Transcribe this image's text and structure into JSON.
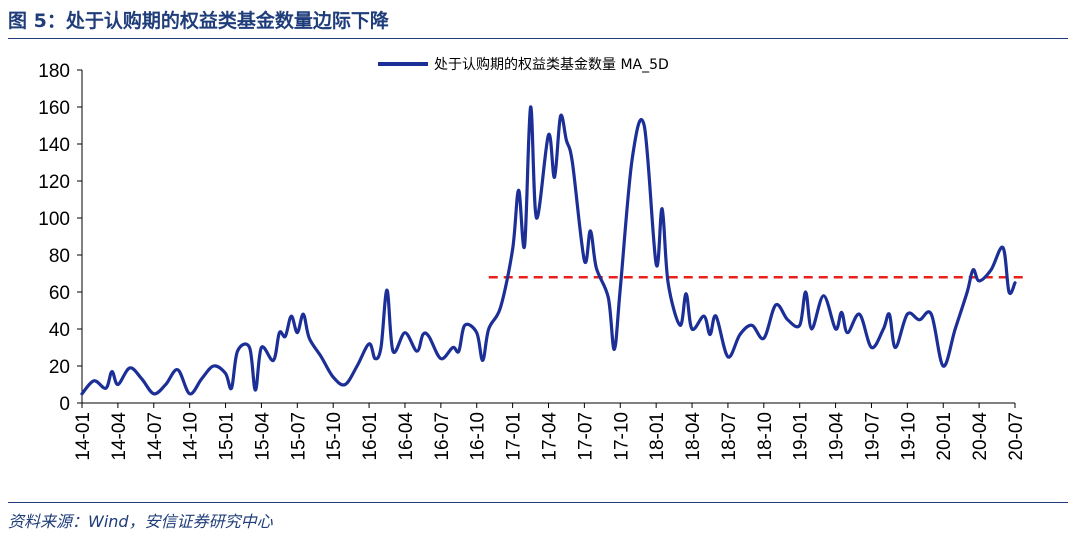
{
  "figure": {
    "title": "图 5：处于认购期的权益类基金数量边际下降",
    "source": "资料来源：Wind，安信证券研究中心"
  },
  "colors": {
    "series_line": "#1c2f96",
    "reference_line": "#e8221b",
    "title_text": "#1f3d7a"
  },
  "chart_data": {
    "type": "line",
    "title": "",
    "xlabel": "",
    "ylabel": "",
    "ylim": [
      0,
      180
    ],
    "yticks": [
      0,
      20,
      40,
      60,
      80,
      100,
      120,
      140,
      160,
      180
    ],
    "x_ticks": [
      "14-01",
      "14-04",
      "14-07",
      "14-10",
      "15-01",
      "15-04",
      "15-07",
      "15-10",
      "16-01",
      "16-04",
      "16-07",
      "16-10",
      "17-01",
      "17-04",
      "17-07",
      "17-10",
      "18-01",
      "18-04",
      "18-07",
      "18-10",
      "19-01",
      "19-04",
      "19-07",
      "19-10",
      "20-01",
      "20-04",
      "20-07"
    ],
    "grid": false,
    "legend_position": "top-center",
    "series": [
      {
        "name": "处于认购期的权益类基金数量 MA_5D",
        "points": [
          [
            "14-01",
            5
          ],
          [
            "14-02",
            12
          ],
          [
            "14-03",
            8
          ],
          [
            "14-03",
            17
          ],
          [
            "14-04",
            10
          ],
          [
            "14-05",
            19
          ],
          [
            "14-06",
            13
          ],
          [
            "14-07",
            5
          ],
          [
            "14-08",
            10
          ],
          [
            "14-09",
            18
          ],
          [
            "14-10",
            5
          ],
          [
            "14-11",
            13
          ],
          [
            "14-12",
            20
          ],
          [
            "15-01",
            16
          ],
          [
            "15-01",
            8
          ],
          [
            "15-02",
            28
          ],
          [
            "15-03",
            30
          ],
          [
            "15-03",
            7
          ],
          [
            "15-04",
            30
          ],
          [
            "15-05",
            23
          ],
          [
            "15-05",
            38
          ],
          [
            "15-06",
            36
          ],
          [
            "15-06",
            47
          ],
          [
            "15-07",
            38
          ],
          [
            "15-07",
            48
          ],
          [
            "15-08",
            35
          ],
          [
            "15-09",
            25
          ],
          [
            "15-10",
            14
          ],
          [
            "15-11",
            10
          ],
          [
            "15-12",
            20
          ],
          [
            "16-01",
            32
          ],
          [
            "16-01",
            24
          ],
          [
            "16-02",
            30
          ],
          [
            "16-02",
            61
          ],
          [
            "16-03",
            28
          ],
          [
            "16-04",
            38
          ],
          [
            "16-05",
            28
          ],
          [
            "16-05",
            37
          ],
          [
            "16-06",
            36
          ],
          [
            "16-07",
            24
          ],
          [
            "16-08",
            30
          ],
          [
            "16-08",
            28
          ],
          [
            "16-09",
            42
          ],
          [
            "16-10",
            38
          ],
          [
            "16-10",
            23
          ],
          [
            "16-11",
            40
          ],
          [
            "16-12",
            52
          ],
          [
            "17-01",
            83
          ],
          [
            "17-01",
            115
          ],
          [
            "17-02",
            85
          ],
          [
            "17-02",
            160
          ],
          [
            "17-03",
            100
          ],
          [
            "17-04",
            145
          ],
          [
            "17-04",
            122
          ],
          [
            "17-05",
            155
          ],
          [
            "17-05",
            142
          ],
          [
            "17-06",
            130
          ],
          [
            "17-07",
            77
          ],
          [
            "17-07",
            93
          ],
          [
            "17-08",
            73
          ],
          [
            "17-09",
            57
          ],
          [
            "17-09",
            29
          ],
          [
            "17-10",
            62
          ],
          [
            "17-11",
            132
          ],
          [
            "17-12",
            150
          ],
          [
            "18-01",
            75
          ],
          [
            "18-01",
            105
          ],
          [
            "18-02",
            65
          ],
          [
            "18-03",
            42
          ],
          [
            "18-03",
            59
          ],
          [
            "18-04",
            40
          ],
          [
            "18-05",
            47
          ],
          [
            "18-05",
            37
          ],
          [
            "18-06",
            47
          ],
          [
            "18-07",
            25
          ],
          [
            "18-08",
            37
          ],
          [
            "18-09",
            42
          ],
          [
            "18-10",
            35
          ],
          [
            "18-11",
            53
          ],
          [
            "18-12",
            45
          ],
          [
            "19-01",
            42
          ],
          [
            "19-01",
            60
          ],
          [
            "19-02",
            40
          ],
          [
            "19-03",
            58
          ],
          [
            "19-04",
            40
          ],
          [
            "19-04",
            49
          ],
          [
            "19-05",
            38
          ],
          [
            "19-06",
            48
          ],
          [
            "19-07",
            30
          ],
          [
            "19-08",
            40
          ],
          [
            "19-08",
            48
          ],
          [
            "19-09",
            30
          ],
          [
            "19-10",
            48
          ],
          [
            "19-11",
            45
          ],
          [
            "19-12",
            48
          ],
          [
            "20-01",
            20
          ],
          [
            "20-02",
            40
          ],
          [
            "20-03",
            60
          ],
          [
            "20-03",
            72
          ],
          [
            "20-04",
            66
          ],
          [
            "20-05",
            72
          ],
          [
            "20-06",
            84
          ],
          [
            "20-06",
            60
          ],
          [
            "20-07",
            65
          ]
        ]
      }
    ],
    "reference_lines": [
      {
        "x_from": "16-10",
        "x_to": "20-07",
        "y": 68
      }
    ]
  }
}
